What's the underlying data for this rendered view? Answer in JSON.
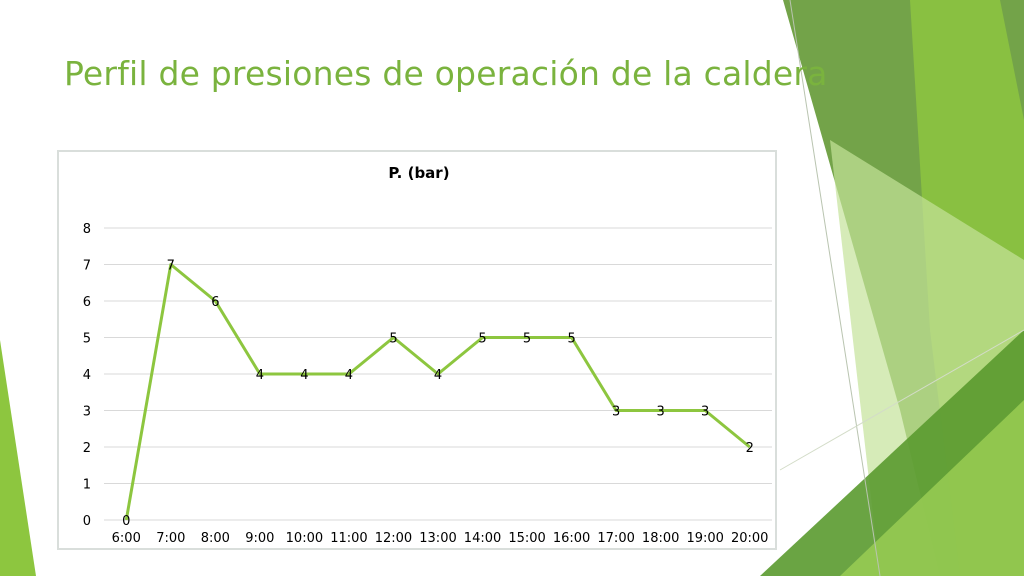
{
  "slide": {
    "title": "Perfil de presiones de operación de la caldera",
    "accent_color": "#7ab33e"
  },
  "theme": {
    "line_color": "#8dc63f",
    "grid_color": "#d9d9d9",
    "decor_colors": [
      "#6b9e3f",
      "#8dc63f",
      "#c5e39a",
      "#4f8a2a"
    ]
  },
  "chart_data": {
    "type": "line",
    "title": "P. (bar)",
    "categories": [
      "6:00",
      "7:00",
      "8:00",
      "9:00",
      "10:00",
      "11:00",
      "12:00",
      "13:00",
      "14:00",
      "15:00",
      "16:00",
      "17:00",
      "18:00",
      "19:00",
      "20:00"
    ],
    "series": [
      {
        "values": [
          0,
          7,
          6,
          4,
          4,
          4,
          5,
          4,
          5,
          5,
          5,
          3,
          3,
          3,
          2
        ]
      }
    ],
    "ylim": [
      0,
      8
    ],
    "yticks": [
      0,
      1,
      2,
      3,
      4,
      5,
      6,
      7,
      8
    ],
    "grid": true,
    "data_labels": true,
    "legend": "none"
  }
}
